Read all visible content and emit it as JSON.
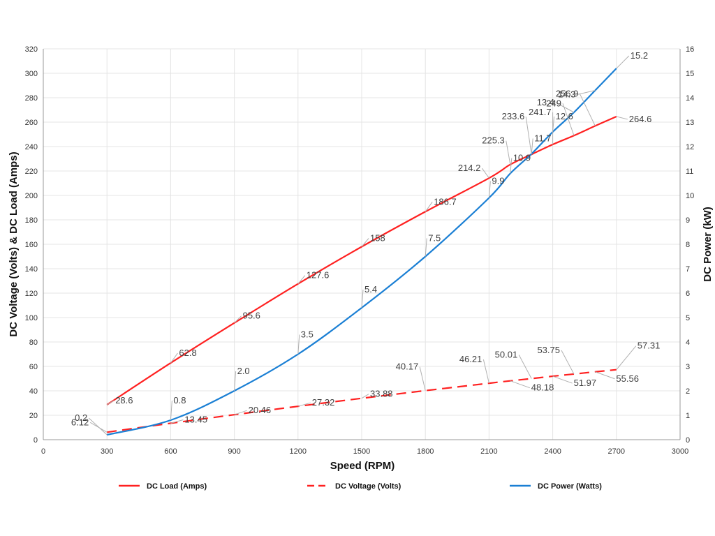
{
  "chart_data": {
    "type": "line",
    "xlabel": "Speed (RPM)",
    "ylabel_left": "DC Voltage (Volts) & DC Load (Amps)",
    "ylabel_right": "DC Power (kW)",
    "xlim": [
      0,
      3000
    ],
    "ylim_left": [
      0,
      320
    ],
    "ylim_right": [
      0,
      16
    ],
    "x_ticks": [
      0,
      300,
      600,
      900,
      1200,
      1500,
      1800,
      2100,
      2400,
      2700,
      3000
    ],
    "y_left_ticks": [
      0,
      20,
      40,
      60,
      80,
      100,
      120,
      140,
      160,
      180,
      200,
      220,
      240,
      260,
      280,
      300,
      320
    ],
    "y_right_ticks": [
      0,
      1,
      2,
      3,
      4,
      5,
      6,
      7,
      8,
      9,
      10,
      11,
      12,
      13,
      14,
      15,
      16
    ],
    "grid": true,
    "legend_position": "bottom",
    "series": [
      {
        "name": "DC Load (Amps)",
        "axis": "left",
        "color": "#ff2020",
        "style": "solid",
        "x": [
          300,
          600,
          900,
          1200,
          1500,
          1800,
          2100,
          2200,
          2300,
          2400,
          2500,
          2600,
          2700
        ],
        "y": [
          28.6,
          62.8,
          95.6,
          127.6,
          158,
          186.7,
          214.2,
          225.3,
          233.6,
          241.7,
          249,
          256.9,
          264.6
        ],
        "labels": [
          "28.6",
          "62.8",
          "95.6",
          "127.6",
          "158",
          "186.7",
          "214.2",
          "225.3",
          "233.6",
          "241.7",
          "249",
          "256.9",
          "264.6"
        ]
      },
      {
        "name": "DC Voltage (Volts)",
        "axis": "left",
        "color": "#ff2020",
        "style": "dashed",
        "x": [
          300,
          600,
          900,
          1200,
          1500,
          1800,
          2100,
          2200,
          2300,
          2400,
          2500,
          2600,
          2700
        ],
        "y": [
          6.12,
          13.45,
          20.46,
          27.32,
          33.88,
          40.17,
          46.21,
          48.18,
          50.01,
          51.97,
          53.75,
          55.56,
          57.31
        ],
        "labels": [
          "6.12",
          "13.45",
          "20.46",
          "27.32",
          "33.88",
          "40.17",
          "46.21",
          "48.18",
          "50.01",
          "51.97",
          "53.75",
          "55.56",
          "57.31"
        ]
      },
      {
        "name": "DC Power (Watts)",
        "axis": "right",
        "color": "#1a7fd4",
        "style": "solid",
        "x": [
          300,
          600,
          900,
          1200,
          1500,
          1800,
          2100,
          2200,
          2300,
          2400,
          2500,
          2600,
          2700
        ],
        "y": [
          0.2,
          0.8,
          2.0,
          3.5,
          5.4,
          7.5,
          9.9,
          10.9,
          11.7,
          12.6,
          13.4,
          14.3,
          15.2
        ],
        "labels": [
          "0.2",
          "0.8",
          "2.0",
          "3.5",
          "5.4",
          "7.5",
          "9.9",
          "10.9",
          "11.7",
          "12.6",
          "13.4",
          "14.3",
          "15.2"
        ]
      }
    ]
  }
}
